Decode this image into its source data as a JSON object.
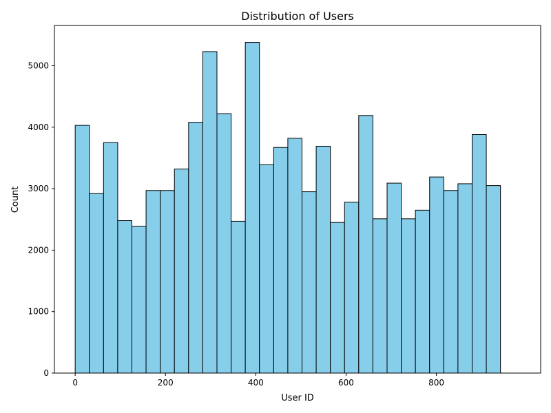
{
  "chart_data": {
    "type": "bar",
    "title": "Distribution of Users",
    "xlabel": "User ID",
    "ylabel": "Count",
    "bin_edges": [
      0,
      31.4,
      62.8,
      94.2,
      125.6,
      157.0,
      188.4,
      219.8,
      251.2,
      282.6,
      314.0,
      345.4,
      376.8,
      408.2,
      439.6,
      471.0,
      502.4,
      533.8,
      565.2,
      596.6,
      628.0,
      659.4,
      690.8,
      722.2,
      753.6,
      785.0,
      816.4,
      847.8,
      879.2,
      910.6,
      942.0
    ],
    "values": [
      4030,
      2920,
      3750,
      2480,
      2390,
      2970,
      2970,
      3320,
      4080,
      5230,
      4220,
      2470,
      5380,
      3390,
      3670,
      3820,
      2950,
      3690,
      2450,
      2780,
      4190,
      2510,
      3090,
      2510,
      2650,
      3190,
      2970,
      3080,
      3880,
      3050
    ],
    "xlim": [
      -46,
      1031
    ],
    "ylim": [
      0,
      5655
    ],
    "xticks": [
      0,
      200,
      400,
      600,
      800
    ],
    "yticks": [
      0,
      1000,
      2000,
      3000,
      4000,
      5000
    ],
    "grid": false,
    "bar_color": "#87ceeb",
    "edge_color": "#000000"
  }
}
